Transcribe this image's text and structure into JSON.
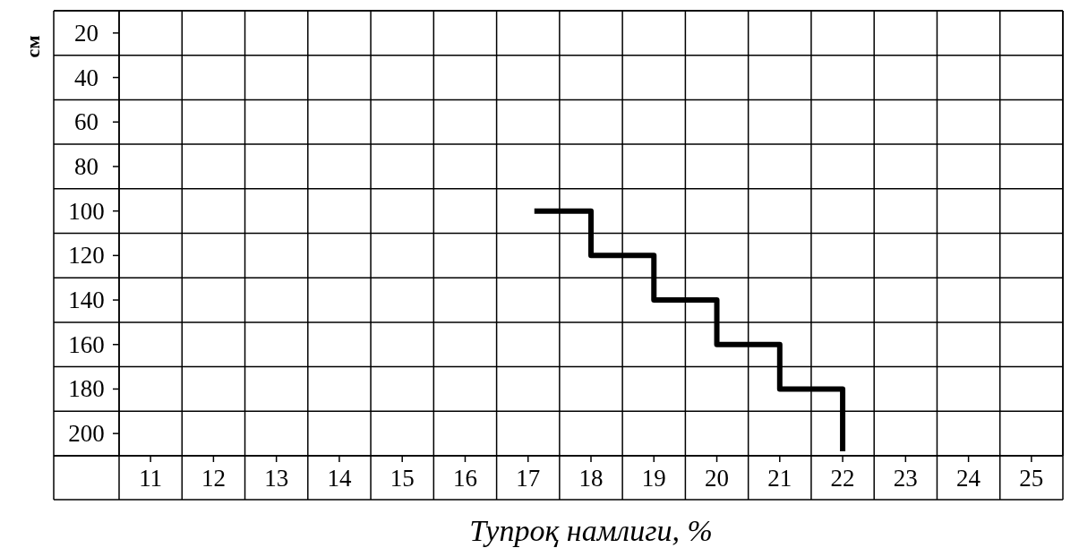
{
  "chart_data": {
    "type": "step",
    "xlabel": "Тупроқ намлиги, %",
    "ylabel": "см",
    "x": [
      17.1,
      18,
      19,
      20,
      21,
      22
    ],
    "values": [
      100,
      120,
      140,
      160,
      180,
      208
    ],
    "color": "#000000",
    "xlim": [
      10.5,
      25.5
    ],
    "xticks": [
      {
        "value": 10.5,
        "label": null
      },
      11,
      {
        "value": 11.5,
        "label": null
      },
      12,
      {
        "value": 12.5,
        "label": null
      },
      13,
      {
        "value": 13.5,
        "label": null
      },
      14,
      {
        "value": 14.5,
        "label": null
      },
      15,
      {
        "value": 15.5,
        "label": null
      },
      16,
      {
        "value": 16.5,
        "label": null
      },
      17,
      {
        "value": 17.5,
        "label": null
      },
      18,
      {
        "value": 18.5,
        "label": null
      },
      19,
      {
        "value": 19.5,
        "label": null
      },
      20,
      {
        "value": 20.5,
        "label": null
      },
      21,
      {
        "value": 21.5,
        "label": null
      },
      22,
      {
        "value": 22.5,
        "label": null
      },
      23,
      {
        "value": 23.5,
        "label": null
      },
      24,
      {
        "value": 24.5,
        "label": null
      },
      25,
      {
        "value": 25.5,
        "label": null
      }
    ],
    "ylim": [
      210,
      10
    ],
    "yticks": [
      {
        "value": 10,
        "label": null
      },
      20,
      {
        "value": 30,
        "label": null
      },
      40,
      {
        "value": 50,
        "label": null
      },
      60,
      {
        "value": 70,
        "label": null
      },
      80,
      {
        "value": 90,
        "label": null
      },
      100,
      {
        "value": 110,
        "label": null
      },
      120,
      {
        "value": 130,
        "label": null
      },
      140,
      {
        "value": 150,
        "label": null
      },
      160,
      {
        "value": 170,
        "label": null
      },
      180,
      {
        "value": 190,
        "label": null
      },
      200,
      {
        "value": 210,
        "label": null
      }
    ],
    "grid": true
  }
}
